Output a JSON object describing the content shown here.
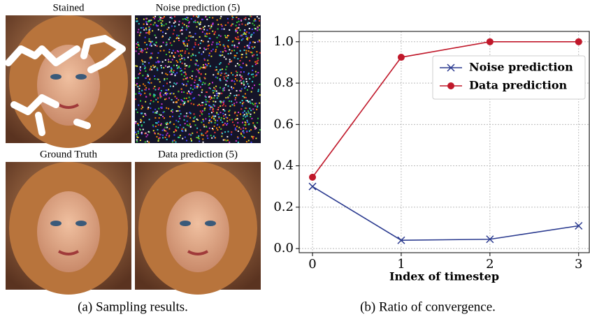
{
  "panels": {
    "images": [
      {
        "title": "Stained"
      },
      {
        "title": "Noise prediction (5)"
      },
      {
        "title": "Ground Truth"
      },
      {
        "title": "Data prediction (5)"
      }
    ],
    "caption_a": "(a) Sampling results.",
    "caption_b": "(b) Ratio of convergence."
  },
  "chart_data": {
    "type": "line",
    "xlabel": "Index of timestep",
    "x": [
      0,
      1,
      2,
      3
    ],
    "series": [
      {
        "name": "Noise prediction",
        "color": "#2a3a8f",
        "marker": "x",
        "values": [
          0.3,
          0.04,
          0.045,
          0.11
        ]
      },
      {
        "name": "Data prediction",
        "color": "#c0182a",
        "marker": "o",
        "values": [
          0.345,
          0.925,
          1.0,
          1.0
        ]
      }
    ],
    "xlim": [
      -0.15,
      3.12
    ],
    "ylim": [
      -0.02,
      1.05
    ],
    "xticks": [
      0,
      1,
      2,
      3
    ],
    "yticks": [
      {
        "value": 0,
        "label": "0.0"
      },
      {
        "value": 0.2,
        "label": "0.2"
      },
      {
        "value": 0.4,
        "label": "0.4"
      },
      {
        "value": 0.6,
        "label": "0.6"
      },
      {
        "value": 0.8,
        "label": "0.8"
      },
      {
        "value": 1.0,
        "label": "1.0"
      }
    ],
    "grid": true,
    "legend": "upper right"
  }
}
